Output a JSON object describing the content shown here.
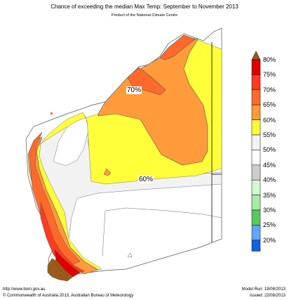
{
  "title": "Chance of exceeding the median Max Temp: September to November 2013",
  "subtitle": "Product of the National Climate Centre",
  "map_labels": {
    "label_70": "70%",
    "label_60": "60%"
  },
  "legend": [
    {
      "label": "80%",
      "color": "#e00000"
    },
    {
      "label": "75%",
      "color": "#ff3b1f"
    },
    {
      "label": "70%",
      "color": "#ff6a2b"
    },
    {
      "label": "65%",
      "color": "#ff9b3a"
    },
    {
      "label": "60%",
      "color": "#ffff3a"
    },
    {
      "label": "55%",
      "color": "#f2f2f2"
    },
    {
      "label": "50%",
      "color": "#ffffff"
    },
    {
      "label": "45%",
      "color": "#cccccc"
    },
    {
      "label": "40%",
      "color": "#d4f7d4"
    },
    {
      "label": "35%",
      "color": "#a6eca6"
    },
    {
      "label": "30%",
      "color": "#59c95a"
    },
    {
      "label": "25%",
      "color": "#5ea8ff"
    },
    {
      "label": "20%",
      "color": "#1660e0"
    }
  ],
  "legend_extremes": {
    "top": "#9a5a1a",
    "bottom": "#8a0aa6"
  },
  "footer": {
    "url": "http://www.bom.gov.au",
    "copyright": "©  Commonwealth of Australia 2013, Australian Bureau of Meteorology",
    "model_run": "Model Run: 19/08/2013",
    "issued": "Issued: 22/08/2013"
  }
}
